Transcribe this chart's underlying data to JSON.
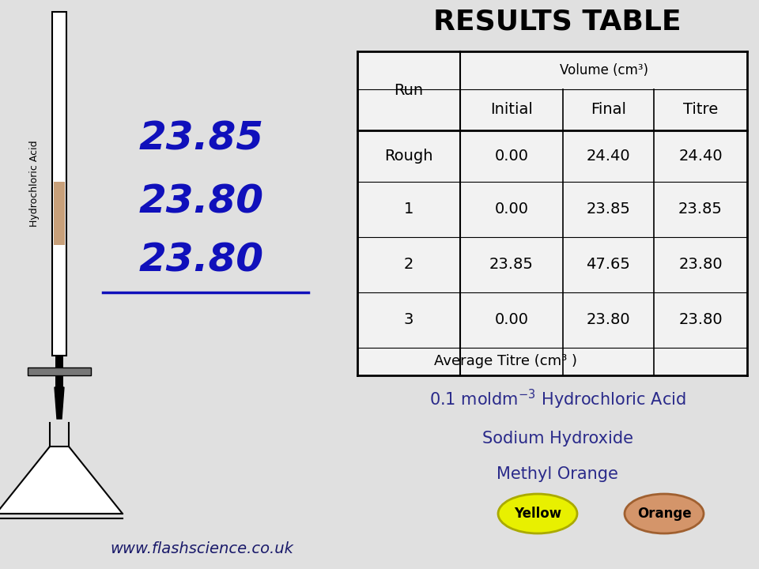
{
  "bg_color": "#e0e0e0",
  "title": "RESULTS TABLE",
  "title_fontsize": 24,
  "col_headers": [
    "Run",
    "Initial",
    "Final",
    "Titre"
  ],
  "volume_header": "Volume (cm³)",
  "rows": [
    [
      "Rough",
      "0.00",
      "24.40",
      "24.40"
    ],
    [
      "1",
      "0.00",
      "23.85",
      "23.85"
    ],
    [
      "2",
      "23.85",
      "47.65",
      "23.80"
    ],
    [
      "3",
      "0.00",
      "23.80",
      "23.80"
    ],
    [
      "Average Titre (cm³ )",
      "",
      "",
      ""
    ]
  ],
  "handwritten_numbers": [
    "23.85",
    "23.80",
    "23.80"
  ],
  "handwritten_color": "#1010bb",
  "note_line2": "Sodium Hydroxide",
  "note_line3": "Methyl Orange",
  "note_color": "#2a2a8a",
  "note_fontsize": 15,
  "website": "www.flashscience.co.uk",
  "website_color": "#1a1a6a",
  "yellow_label": "Yellow",
  "orange_label": "Orange",
  "yellow_color": "#e8f000",
  "orange_color": "#d4956a",
  "yellow_border": "#aaaa00",
  "orange_border": "#a06030",
  "label_hydrochloric": "Hydrochloric Acid",
  "liquid_color": "#c8a07a",
  "table_facecolor": "#f2f2f2"
}
